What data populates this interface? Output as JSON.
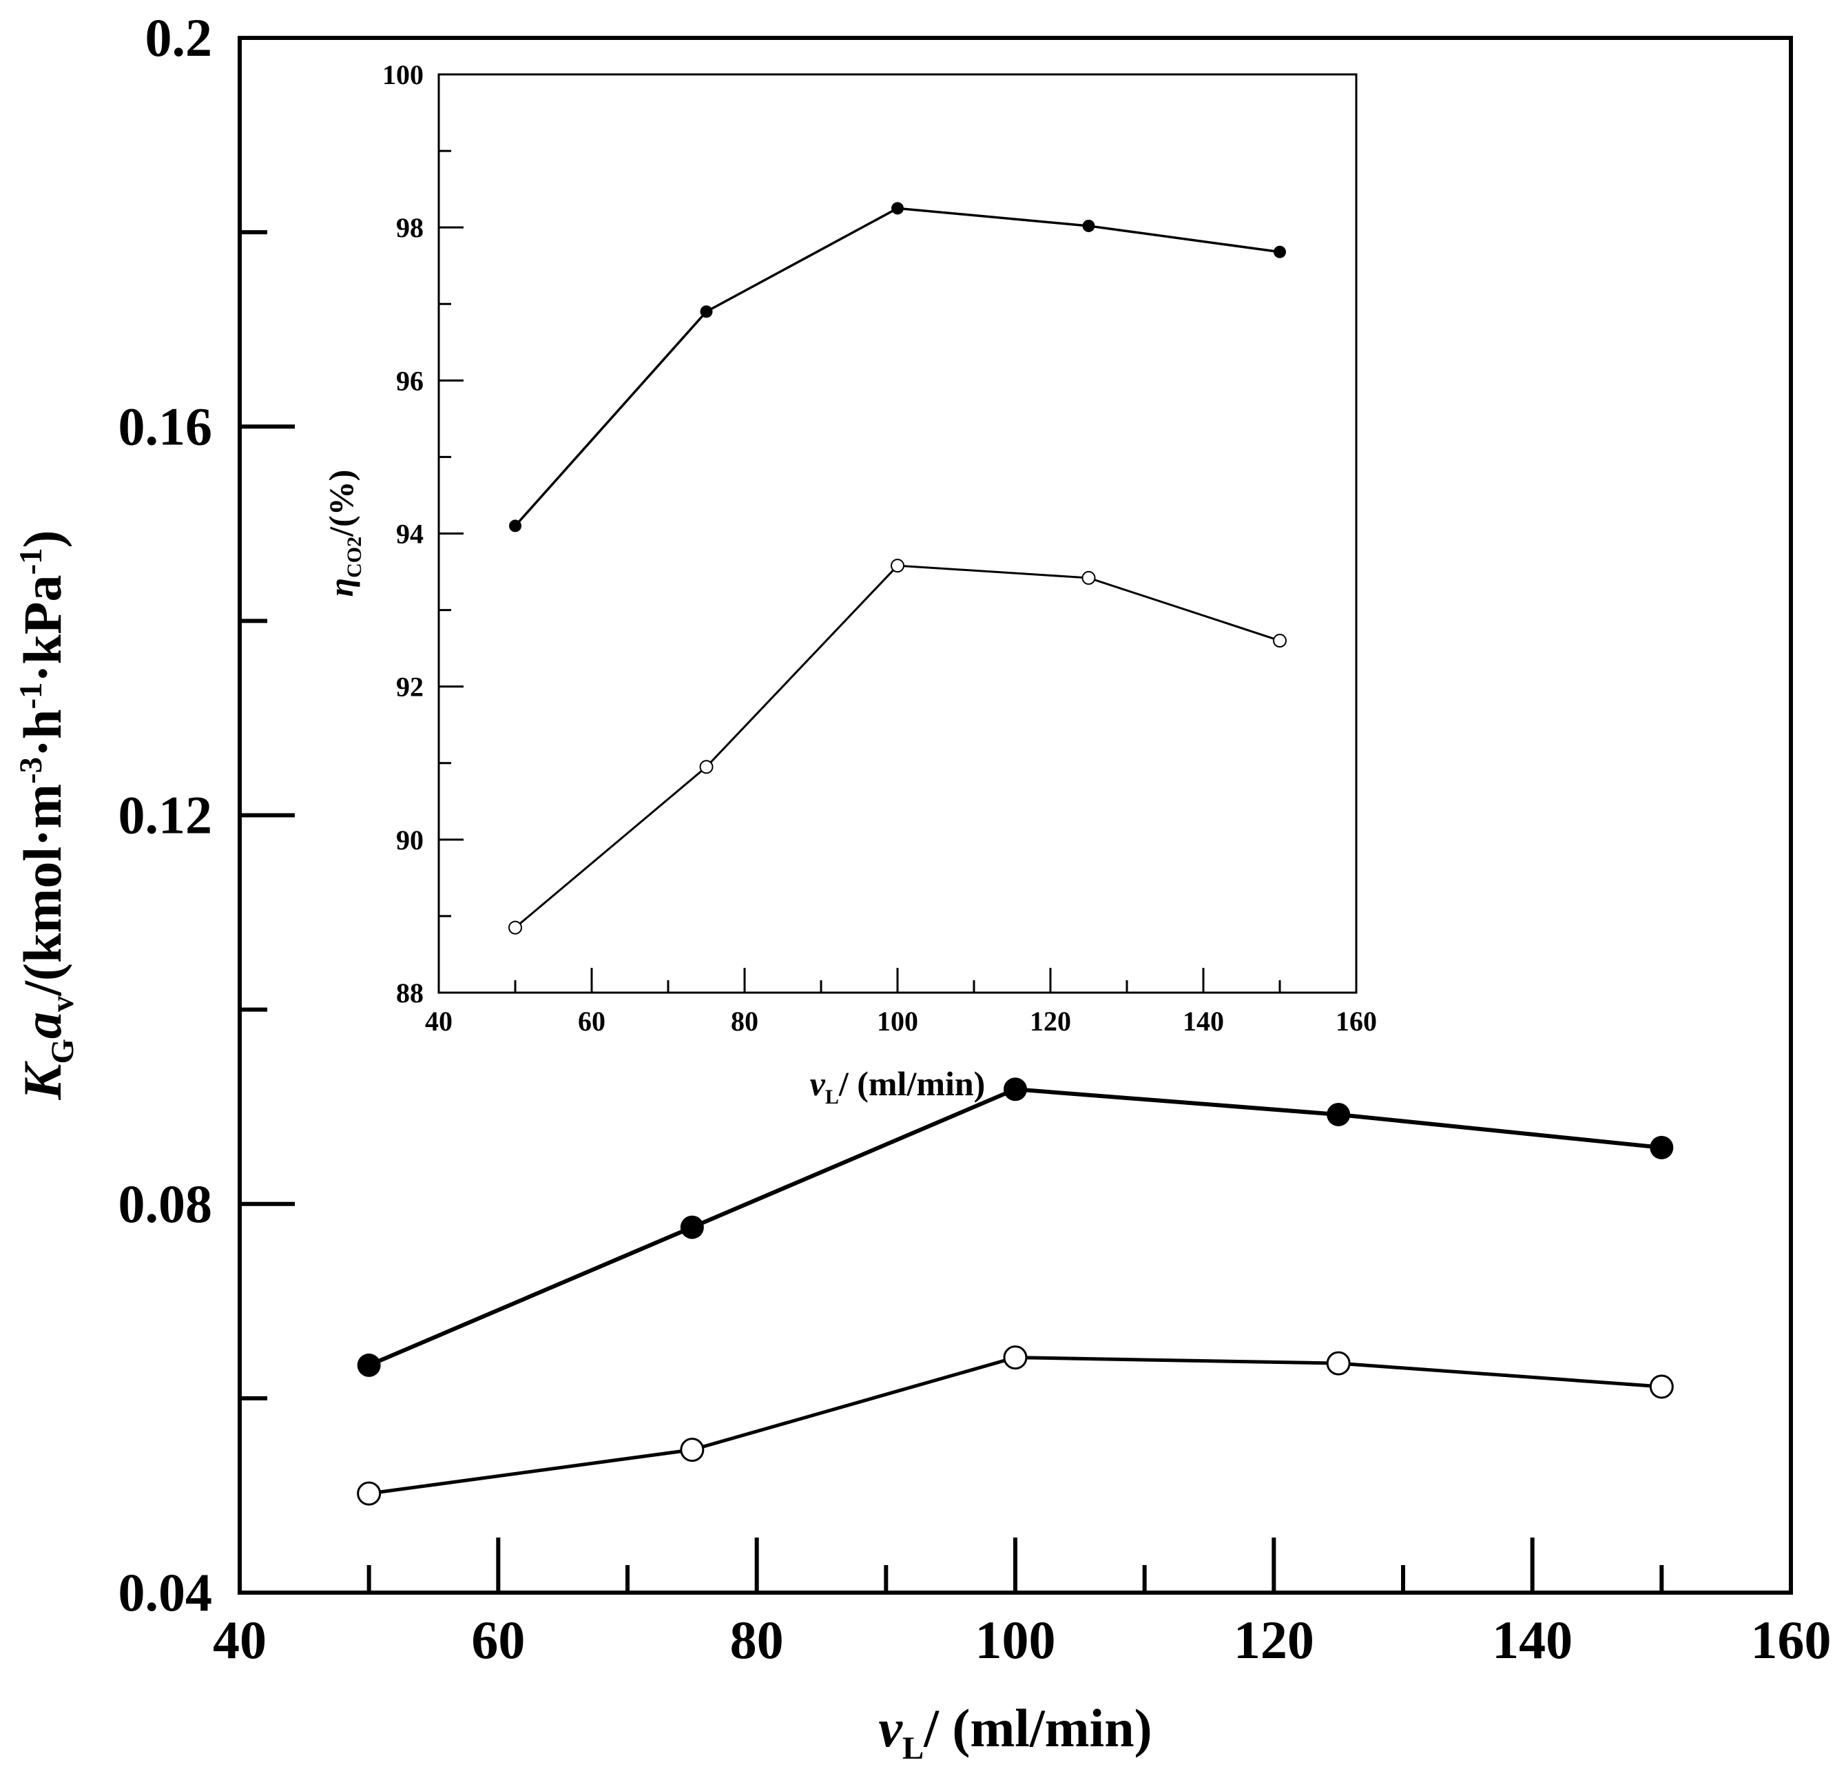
{
  "chart_data": [
    {
      "type": "line",
      "xlabel_var": "v",
      "xlabel_sub": "L",
      "xlabel_rest": "/ (ml/min)",
      "ylabel_var1": "K",
      "ylabel_sub1": "G",
      "ylabel_var2": "a",
      "ylabel_sub2": "v",
      "ylabel_units_a": "/(kmol·m",
      "ylabel_exp1": "-3",
      "ylabel_units_b": "·h",
      "ylabel_exp2": "-1",
      "ylabel_units_c": "·kPa",
      "ylabel_exp3": "-1",
      "ylabel_units_d": ")",
      "xlim": [
        40,
        160
      ],
      "ylim": [
        0.04,
        0.2
      ],
      "xticks": [
        "40",
        "60",
        "80",
        "100",
        "120",
        "140",
        "160"
      ],
      "yticks": [
        "0.04",
        "0.08",
        "0.12",
        "0.16",
        "0.2"
      ],
      "series": [
        {
          "name": "filled",
          "marker": "filled-circle",
          "x": [
            50,
            75,
            100,
            125,
            150
          ],
          "values": [
            0.0634,
            0.0776,
            0.0918,
            0.0892,
            0.0858
          ]
        },
        {
          "name": "open",
          "marker": "open-circle",
          "x": [
            50,
            75,
            100,
            125,
            150
          ],
          "values": [
            0.0502,
            0.0547,
            0.0642,
            0.0636,
            0.0612
          ]
        }
      ]
    },
    {
      "type": "line",
      "inset": true,
      "xlabel_var": "v",
      "xlabel_sub": "L",
      "xlabel_rest": "/ (ml/min)",
      "ylabel_var": "η",
      "ylabel_sub": "CO2",
      "ylabel_rest": "/(%)",
      "xlim": [
        40,
        160
      ],
      "ylim": [
        88,
        100
      ],
      "xticks": [
        "40",
        "60",
        "80",
        "100",
        "120",
        "140",
        "160"
      ],
      "yticks": [
        "88",
        "90",
        "92",
        "94",
        "96",
        "98",
        "100"
      ],
      "series": [
        {
          "name": "filled",
          "marker": "filled-circle",
          "x": [
            50,
            75,
            100,
            125,
            150
          ],
          "values": [
            94.1,
            96.9,
            98.25,
            98.02,
            97.68
          ]
        },
        {
          "name": "open",
          "marker": "open-circle",
          "x": [
            50,
            75,
            100,
            125,
            150
          ],
          "values": [
            88.85,
            90.95,
            93.58,
            93.42,
            92.6
          ]
        }
      ]
    }
  ]
}
